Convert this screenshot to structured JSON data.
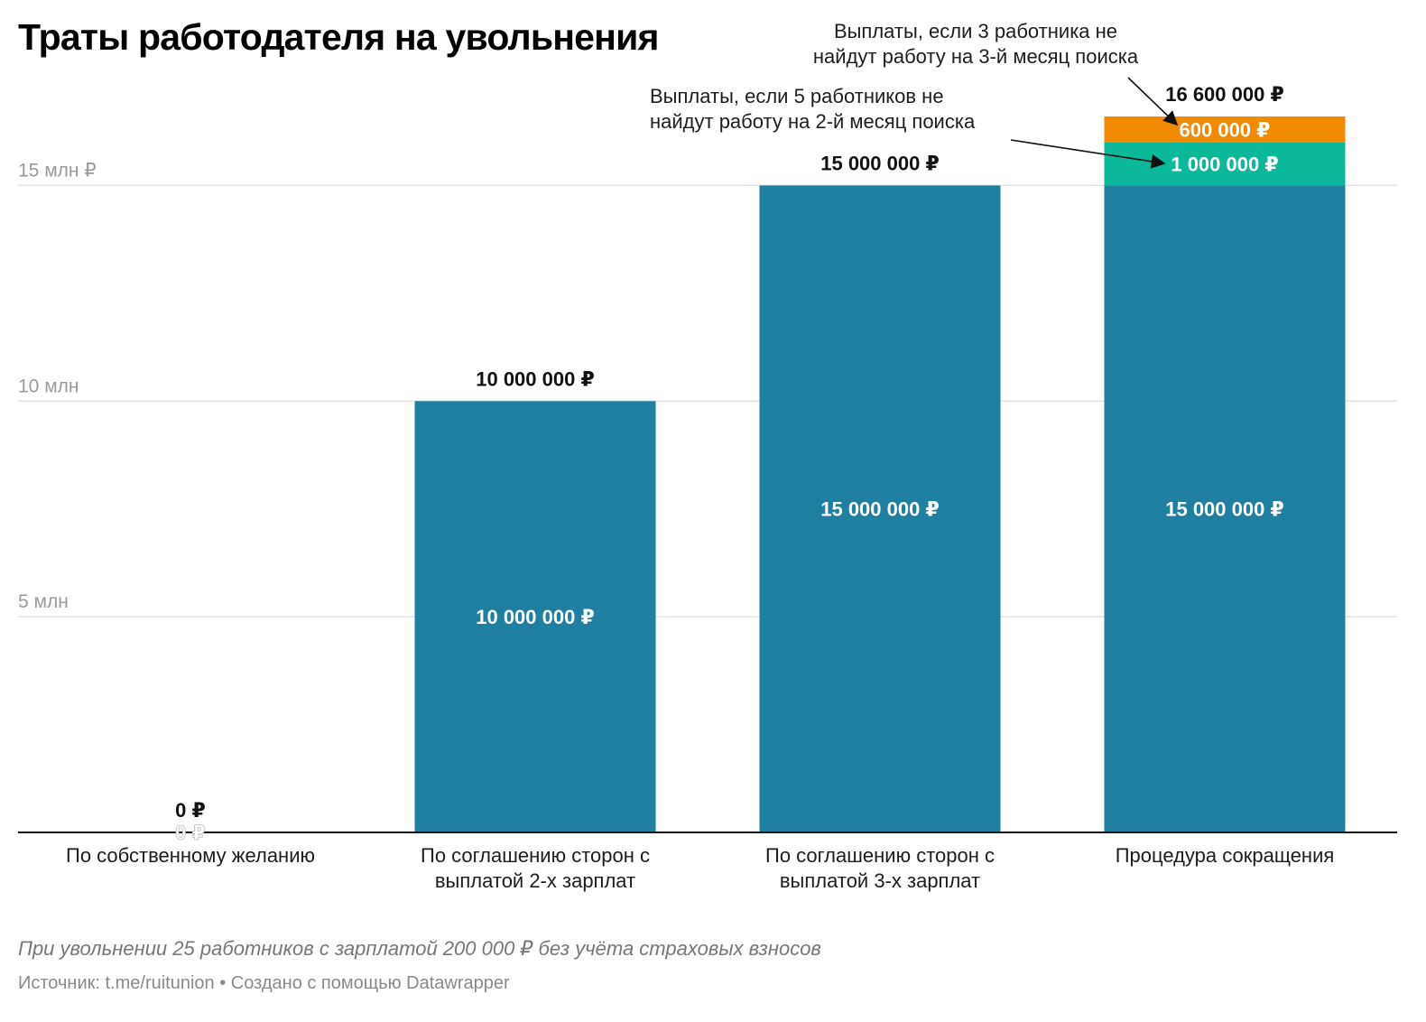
{
  "title": "Траты работодателя на увольнения",
  "chart_data": {
    "type": "bar",
    "stacked": true,
    "categories": [
      [
        "По собственному желанию"
      ],
      [
        "По соглашению сторон с",
        "выплатой 2-х зарплат"
      ],
      [
        "По соглашению сторон с",
        "выплатой 3-х зарплат"
      ],
      [
        "Процедура сокращения"
      ]
    ],
    "series": [
      {
        "values": [
          0,
          10000000,
          15000000,
          15000000
        ],
        "color": "#1e7fa0"
      },
      {
        "values": [
          0,
          0,
          0,
          1000000
        ],
        "color": "#0cb89a"
      },
      {
        "values": [
          0,
          0,
          0,
          600000
        ],
        "color": "#f08a00"
      }
    ],
    "inner_labels": [
      [
        "0 ₽",
        null,
        null
      ],
      [
        "10 000 000 ₽",
        null,
        null
      ],
      [
        "15 000 000 ₽",
        null,
        null
      ],
      [
        "15 000 000 ₽",
        "1 000 000 ₽",
        "600 000 ₽"
      ]
    ],
    "totals": [
      "0 ₽",
      "10 000 000 ₽",
      "15 000 000 ₽",
      "16 600 000 ₽"
    ],
    "ylim": [
      0,
      16600000
    ],
    "yticks": [
      {
        "value": 5000000,
        "label": "5 млн"
      },
      {
        "value": 10000000,
        "label": "10 млн"
      },
      {
        "value": 15000000,
        "label": "15 млн ₽"
      }
    ],
    "grid": true,
    "annotations": [
      {
        "lines": [
          "Выплаты, если 3 работника не",
          "найдут работу на 3-й месяц поиска"
        ],
        "series": 2,
        "category": 3
      },
      {
        "lines": [
          "Выплаты, если 5 работников не",
          "найдут работу на 2-й месяц поиска"
        ],
        "series": 1,
        "category": 3
      }
    ]
  },
  "notes": "При увольнении 25 работников с зарплатой 200 000 ₽ без учёта страховых взносов",
  "source": "Источник: t.me/ruitunion • Создано с помощью Datawrapper"
}
